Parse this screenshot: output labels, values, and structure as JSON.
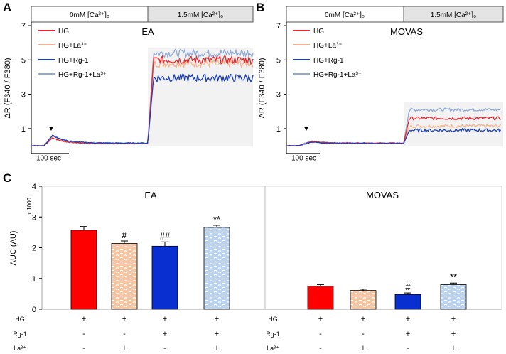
{
  "chart_data": [
    {
      "panel": "A",
      "type": "line",
      "title": "EA",
      "ylabel": "ΔR (F340 / F380)",
      "ylim": [
        0,
        7
      ],
      "yticks": [
        "1",
        "3",
        "5",
        "7"
      ],
      "time_scale_label": "100 sec",
      "condition_labels": [
        "0mM [Ca²⁺]₀",
        "1.5mM [Ca²⁺]₀"
      ],
      "stimulus_marker": "▼",
      "series": [
        {
          "name": "HG",
          "color": "#e8262b",
          "baseline": 0,
          "peak": 0.45,
          "plateau": 0.12,
          "elevated": 5.0
        },
        {
          "name": "HG+La³⁺",
          "color": "#f2b48d",
          "baseline": 0,
          "peak": 0.58,
          "plateau": 0.13,
          "elevated": 4.8
        },
        {
          "name": "HG+Rg-1",
          "color": "#1a3fbd",
          "baseline": 0,
          "peak": 0.6,
          "plateau": 0.15,
          "elevated": 3.95
        },
        {
          "name": "HG+Rg-1+La³⁺",
          "color": "#8fa9d8",
          "baseline": 0,
          "peak": 0.62,
          "plateau": 0.16,
          "elevated": 5.4
        }
      ]
    },
    {
      "panel": "B",
      "type": "line",
      "title": "MOVAS",
      "ylabel": "ΔR (F340 / F380)",
      "ylim": [
        0,
        7
      ],
      "yticks": [
        "1",
        "3",
        "5",
        "7"
      ],
      "time_scale_label": "100 sec",
      "condition_labels": [
        "0mM [Ca²⁺]₀",
        "1.5mM [Ca²⁺]₀"
      ],
      "stimulus_marker": "▼",
      "series": [
        {
          "name": "HG",
          "color": "#e8262b",
          "baseline": 0,
          "peak": 0.25,
          "plateau": 0.15,
          "elevated": 1.6
        },
        {
          "name": "HG+La³⁺",
          "color": "#f2b48d",
          "baseline": 0,
          "peak": 0.25,
          "plateau": 0.15,
          "elevated": 1.15
        },
        {
          "name": "HG+Rg-1",
          "color": "#1a3fbd",
          "baseline": 0,
          "peak": 0.22,
          "plateau": 0.13,
          "elevated": 0.9
        },
        {
          "name": "HG+Rg-1+La³⁺",
          "color": "#8fa9d8",
          "baseline": 0,
          "peak": 0.27,
          "plateau": 0.16,
          "elevated": 2.1
        }
      ]
    },
    {
      "panel": "C",
      "type": "bar",
      "ylabel": "AUC (AU)",
      "yscale_note": "x 1000",
      "ylim": [
        0,
        4
      ],
      "yticks": [
        "0",
        "1",
        "2",
        "3",
        "4"
      ],
      "groups": [
        {
          "title": "EA",
          "bars": [
            {
              "label": "HG",
              "value": 2.57,
              "error": 0.12,
              "sig": "",
              "color": "#ff0000"
            },
            {
              "label": "HG+La³⁺",
              "value": 2.14,
              "error": 0.08,
              "sig": "#",
              "color": "#f5c6a3"
            },
            {
              "label": "HG+Rg-1",
              "value": 2.05,
              "error": 0.14,
              "sig": "##",
              "color": "#0a2fd0"
            },
            {
              "label": "HG+Rg-1+La³⁺",
              "value": 2.66,
              "error": 0.07,
              "sig": "**",
              "color": "#bcd3ee"
            }
          ]
        },
        {
          "title": "MOVAS",
          "bars": [
            {
              "label": "HG",
              "value": 0.75,
              "error": 0.05,
              "sig": "",
              "color": "#ff0000"
            },
            {
              "label": "HG+La³⁺",
              "value": 0.61,
              "error": 0.04,
              "sig": "",
              "color": "#f5c6a3"
            },
            {
              "label": "HG+Rg-1",
              "value": 0.48,
              "error": 0.05,
              "sig": "#",
              "color": "#0a2fd0"
            },
            {
              "label": "HG+Rg-1+La³⁺",
              "value": 0.8,
              "error": 0.05,
              "sig": "**",
              "color": "#bcd3ee"
            }
          ]
        }
      ],
      "design_rows": [
        {
          "label": "HG",
          "values": [
            "+",
            "+",
            "+",
            "+"
          ]
        },
        {
          "label": "Rg-1",
          "values": [
            "-",
            "-",
            "+",
            "+"
          ]
        },
        {
          "label": "La³⁺",
          "values": [
            "-",
            "+",
            "-",
            "+"
          ]
        }
      ]
    }
  ],
  "panel_labels": [
    "A",
    "B",
    "C"
  ]
}
